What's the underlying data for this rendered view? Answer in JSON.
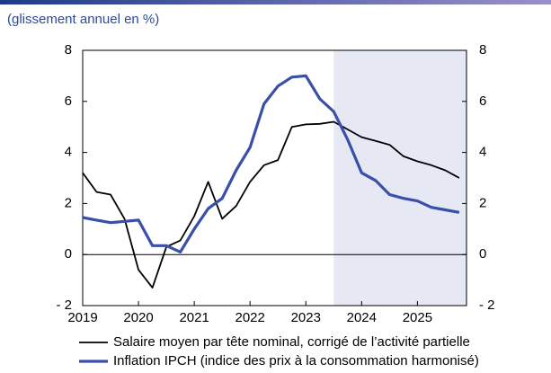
{
  "chart_data": {
    "type": "line",
    "subtitle": "(glissement annuel en %)",
    "xlim": [
      2019,
      2025.88
    ],
    "xticks": [
      2019,
      2020,
      2021,
      2022,
      2023,
      2024,
      2025
    ],
    "ylim": [
      -2,
      8
    ],
    "yticks": [
      {
        "value": -2,
        "label": "- 2"
      },
      0,
      2,
      4,
      6,
      8
    ],
    "y2lim": [
      -2,
      8
    ],
    "y2ticks": [
      {
        "value": -2,
        "label": "- 2"
      },
      0,
      2,
      4,
      6,
      8
    ],
    "shaded_x": [
      2023.5,
      2025.88
    ],
    "shade_color": "#e6e8f4",
    "x": [
      2019,
      2019.25,
      2019.5,
      2019.75,
      2020,
      2020.25,
      2020.5,
      2020.75,
      2021,
      2021.25,
      2021.5,
      2021.75,
      2022,
      2022.25,
      2022.5,
      2022.75,
      2023,
      2023.25,
      2023.5,
      2023.75,
      2024,
      2024.25,
      2024.5,
      2024.75,
      2025,
      2025.25,
      2025.5,
      2025.75
    ],
    "series": [
      {
        "name": "Salaire moyen par tête nominal, corrigé de l’activité partielle",
        "color": "#000000",
        "width": 1.8,
        "values": [
          3.2,
          2.45,
          2.35,
          1.4,
          -0.6,
          -1.3,
          0.3,
          0.55,
          1.5,
          2.85,
          1.4,
          1.9,
          2.85,
          3.5,
          3.7,
          5.0,
          5.1,
          5.12,
          5.2,
          4.9,
          4.6,
          4.45,
          4.3,
          3.85,
          3.65,
          3.5,
          3.3,
          3.0
        ]
      },
      {
        "name": "Inflation IPCH (indice des prix à la consommation harmonisé)",
        "color": "#3a4fa8",
        "width": 3.2,
        "values": [
          1.45,
          1.35,
          1.25,
          1.3,
          1.35,
          0.35,
          0.35,
          0.1,
          1.0,
          1.8,
          2.2,
          3.3,
          4.2,
          5.9,
          6.6,
          6.95,
          7.0,
          6.1,
          5.6,
          4.5,
          3.2,
          2.9,
          2.35,
          2.2,
          2.1,
          1.85,
          1.75,
          1.65
        ]
      }
    ]
  }
}
